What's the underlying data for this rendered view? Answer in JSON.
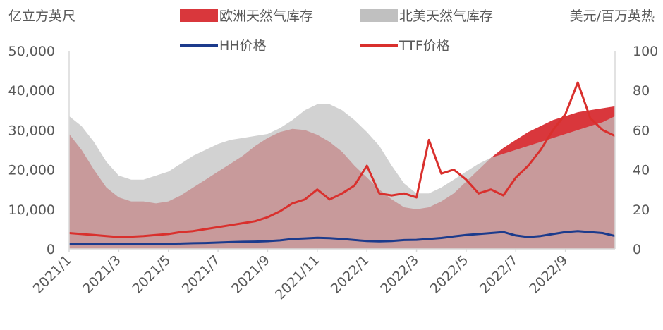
{
  "chart_data": {
    "type": "area",
    "left_axis_label": "亿立方英尺",
    "right_axis_label": "美元/百万英热",
    "left_ylim": [
      0,
      50000
    ],
    "right_ylim": [
      0,
      100
    ],
    "left_ticks": [
      "0",
      "10,000",
      "20,000",
      "30,000",
      "40,000",
      "50,000"
    ],
    "right_ticks": [
      "0",
      "20",
      "40",
      "60",
      "80",
      "100"
    ],
    "x_ticks": [
      "2021/1",
      "2021/3",
      "2021/5",
      "2021/7",
      "2021/9",
      "2021/11",
      "2022/1",
      "2022/3",
      "2022/5",
      "2022/7",
      "2022/9"
    ],
    "x_range_months": [
      0,
      22
    ],
    "legend_position": "top",
    "grid": false,
    "colors": {
      "europe_storage": "#d9373c",
      "us_storage": "#c0c0c0",
      "hh_price": "#1c3b8c",
      "ttf_price": "#d9302d"
    },
    "series": [
      {
        "name": "欧洲天然气库存",
        "axis": "left",
        "kind": "area",
        "x": [
          0,
          0.5,
          1,
          1.5,
          2,
          2.5,
          3,
          3.5,
          4,
          4.5,
          5,
          5.5,
          6,
          6.5,
          7,
          7.5,
          8,
          8.5,
          9,
          9.5,
          10,
          10.5,
          11,
          11.5,
          12,
          12.5,
          13,
          13.5,
          14,
          14.5,
          15,
          15.5,
          16,
          16.5,
          17,
          17.5,
          18,
          18.5,
          19,
          19.5,
          20,
          20.5,
          21,
          21.5,
          22
        ],
        "y": [
          29000,
          25000,
          20000,
          15500,
          13000,
          12000,
          12000,
          11500,
          12000,
          13500,
          15500,
          17500,
          19500,
          21500,
          23500,
          26000,
          28000,
          29500,
          30300,
          30000,
          28800,
          27000,
          24500,
          21000,
          18000,
          15000,
          12500,
          10500,
          10000,
          10500,
          12000,
          14000,
          17000,
          20000,
          23000,
          25500,
          27500,
          29500,
          31000,
          32500,
          33500,
          34500,
          35000,
          35500,
          36000
        ]
      },
      {
        "name": "北美天然气库存",
        "axis": "left",
        "kind": "area",
        "x": [
          0,
          0.5,
          1,
          1.5,
          2,
          2.5,
          3,
          3.5,
          4,
          4.5,
          5,
          5.5,
          6,
          6.5,
          7,
          7.5,
          8,
          8.5,
          9,
          9.5,
          10,
          10.5,
          11,
          11.5,
          12,
          12.5,
          13,
          13.5,
          14,
          14.5,
          15,
          15.5,
          16,
          16.5,
          17,
          17.5,
          18,
          18.5,
          19,
          19.5,
          20,
          20.5,
          21,
          21.5,
          22
        ],
        "y": [
          33500,
          31000,
          27000,
          22000,
          18500,
          17500,
          17500,
          18500,
          19500,
          21500,
          23500,
          25000,
          26500,
          27500,
          28000,
          28500,
          29000,
          30500,
          32500,
          35000,
          36500,
          36500,
          35000,
          32500,
          29500,
          26000,
          21000,
          16500,
          14000,
          14000,
          15500,
          17500,
          19500,
          21500,
          23000,
          24000,
          25000,
          26000,
          27000,
          28000,
          29000,
          30000,
          31000,
          32000,
          33500
        ]
      },
      {
        "name": "HH价格",
        "axis": "right",
        "kind": "line",
        "x": [
          0,
          0.5,
          1,
          1.5,
          2,
          2.5,
          3,
          3.5,
          4,
          4.5,
          5,
          5.5,
          6,
          6.5,
          7,
          7.5,
          8,
          8.5,
          9,
          9.5,
          10,
          10.5,
          11,
          11.5,
          12,
          12.5,
          13,
          13.5,
          14,
          14.5,
          15,
          15.5,
          16,
          16.5,
          17,
          17.5,
          18,
          18.5,
          19,
          19.5,
          20,
          20.5,
          21,
          21.5,
          22
        ],
        "y": [
          2.6,
          2.6,
          2.6,
          2.6,
          2.6,
          2.6,
          2.6,
          2.6,
          2.6,
          2.7,
          2.9,
          3.0,
          3.2,
          3.4,
          3.6,
          3.7,
          3.9,
          4.3,
          5.0,
          5.3,
          5.6,
          5.4,
          5.0,
          4.5,
          4.0,
          3.8,
          4.0,
          4.5,
          4.6,
          5.0,
          5.5,
          6.3,
          7.0,
          7.5,
          8.0,
          8.5,
          6.8,
          6.0,
          6.5,
          7.5,
          8.5,
          9.0,
          8.5,
          8.0,
          6.5
        ]
      },
      {
        "name": "TTF价格",
        "axis": "right",
        "kind": "line",
        "x": [
          0,
          0.5,
          1,
          1.5,
          2,
          2.5,
          3,
          3.5,
          4,
          4.5,
          5,
          5.5,
          6,
          6.5,
          7,
          7.5,
          8,
          8.5,
          9,
          9.5,
          10,
          10.5,
          11,
          11.5,
          12,
          12.5,
          13,
          13.5,
          14,
          14.5,
          15,
          15.5,
          16,
          16.5,
          17,
          17.5,
          18,
          18.5,
          19,
          19.5,
          20,
          20.5,
          21,
          21.5,
          22
        ],
        "y": [
          8,
          7.5,
          7,
          6.5,
          6,
          6.2,
          6.5,
          7,
          7.5,
          8.5,
          9,
          10,
          11,
          12,
          13,
          14,
          16,
          19,
          23,
          25,
          30,
          25,
          28,
          32,
          42,
          28,
          27,
          28,
          26,
          55,
          38,
          40,
          35,
          28,
          30,
          27,
          36,
          42,
          50,
          60,
          68,
          84,
          66,
          60,
          57
        ]
      }
    ]
  }
}
